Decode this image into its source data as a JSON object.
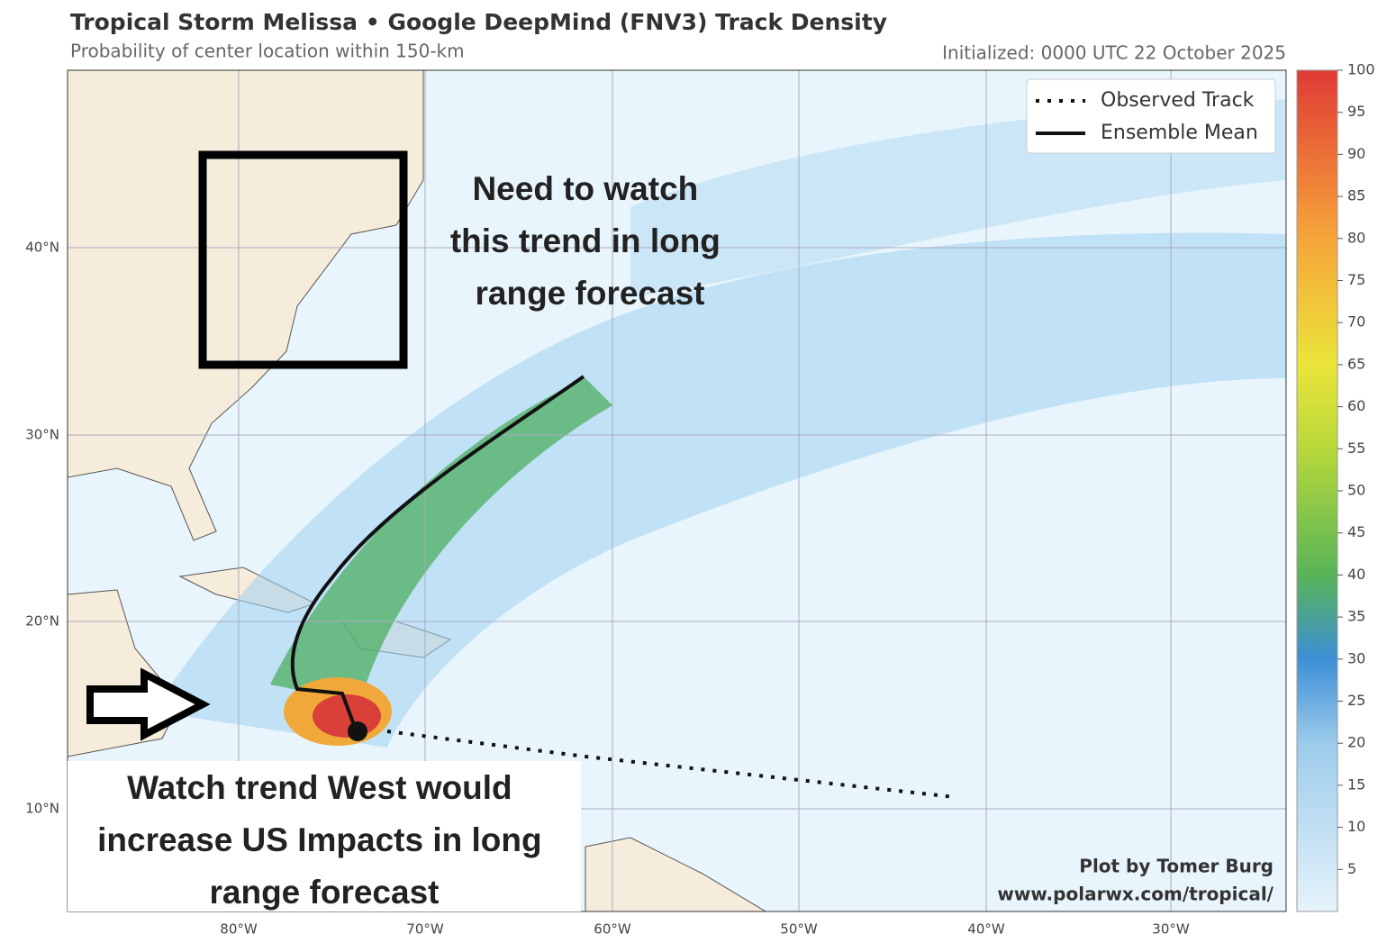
{
  "header": {
    "title": "Tropical Storm Melissa • Google DeepMind (FNV3) Track Density",
    "subtitle": "Probability of center location within 150-km",
    "initialized": "Initialized: 0000 UTC 22 October 2025"
  },
  "axes": {
    "lat": [
      "40°N",
      "30°N",
      "20°N",
      "10°N"
    ],
    "lon": [
      "80°W",
      "70°W",
      "60°W",
      "50°W",
      "40°W",
      "30°W"
    ]
  },
  "legend": [
    "Observed Track",
    "Ensemble Mean"
  ],
  "colorbar": {
    "ticks": [
      5,
      10,
      15,
      20,
      25,
      30,
      35,
      40,
      45,
      50,
      55,
      60,
      65,
      70,
      75,
      80,
      85,
      90,
      95,
      100
    ]
  },
  "annotations": {
    "northeast": [
      "Need to watch",
      "this trend in long",
      "range forecast"
    ],
    "west": [
      "Watch trend West would",
      "increase US Impacts in long",
      "range forecast"
    ]
  },
  "credits": [
    "Plot by Tomer Burg",
    "www.polarwx.com/tropical/"
  ]
}
